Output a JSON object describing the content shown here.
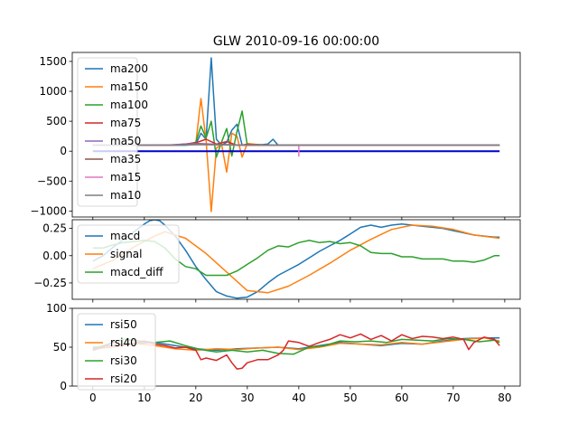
{
  "chart_data": [
    {
      "type": "line",
      "title": "GLW 2010-09-16 00:00:00",
      "xlim": [
        -4,
        83
      ],
      "ylim": [
        -1100,
        1650
      ],
      "yticks": [
        1500,
        1000,
        500,
        0,
        -500,
        -1000
      ],
      "series": [
        {
          "name": "ma200",
          "color": "#1f77b4",
          "x": [
            0,
            10,
            15,
            18,
            20,
            21,
            22,
            23,
            24,
            25,
            26,
            27,
            28,
            29,
            30,
            32,
            34,
            35,
            36,
            40,
            50,
            60,
            70,
            79
          ],
          "y": [
            100,
            100,
            100,
            100,
            110,
            300,
            200,
            1560,
            200,
            100,
            150,
            350,
            450,
            100,
            120,
            100,
            120,
            200,
            100,
            100,
            100,
            100,
            100,
            100
          ]
        },
        {
          "name": "ma150",
          "color": "#ff7f0e",
          "x": [
            0,
            10,
            15,
            18,
            20,
            21,
            22,
            23,
            24,
            25,
            26,
            27,
            28,
            29,
            30,
            32,
            35,
            40,
            50,
            60,
            70,
            79
          ],
          "y": [
            100,
            100,
            100,
            110,
            130,
            880,
            180,
            -1010,
            50,
            120,
            -350,
            300,
            250,
            -100,
            130,
            110,
            100,
            100,
            100,
            100,
            100,
            100
          ]
        },
        {
          "name": "ma100",
          "color": "#2ca02c",
          "x": [
            0,
            10,
            15,
            18,
            20,
            21,
            22,
            23,
            24,
            25,
            26,
            27,
            28,
            29,
            30,
            32,
            35,
            40,
            50,
            60,
            70,
            79
          ],
          "y": [
            100,
            100,
            100,
            110,
            150,
            420,
            220,
            500,
            -100,
            150,
            380,
            -80,
            330,
            670,
            100,
            110,
            100,
            100,
            100,
            100,
            100,
            100
          ]
        },
        {
          "name": "ma75",
          "color": "#d62728",
          "x": [
            0,
            10,
            15,
            18,
            20,
            22,
            24,
            26,
            28,
            30,
            35,
            40,
            50,
            60,
            70,
            79
          ],
          "y": [
            100,
            100,
            100,
            120,
            140,
            200,
            120,
            160,
            100,
            110,
            100,
            100,
            100,
            100,
            100,
            100
          ]
        },
        {
          "name": "ma50",
          "color": "#9467bd",
          "x": [
            0,
            10,
            15,
            20,
            25,
            30,
            35,
            40,
            50,
            60,
            70,
            79
          ],
          "y": [
            100,
            100,
            105,
            130,
            110,
            100,
            100,
            100,
            100,
            100,
            100,
            100
          ]
        },
        {
          "name": "ma35",
          "color": "#8c564b",
          "x": [
            0,
            10,
            15,
            20,
            25,
            30,
            35,
            40,
            50,
            60,
            70,
            79
          ],
          "y": [
            100,
            100,
            100,
            120,
            110,
            100,
            100,
            100,
            100,
            100,
            100,
            100
          ]
        },
        {
          "name": "ma15",
          "color": "#e377c2",
          "x": [
            0,
            10,
            15,
            20,
            25,
            30,
            35,
            40,
            50,
            60,
            70,
            79
          ],
          "y": [
            100,
            100,
            100,
            110,
            105,
            100,
            100,
            100,
            100,
            100,
            100,
            100
          ]
        },
        {
          "name": "ma10",
          "color": "#7f7f7f",
          "x": [
            0,
            10,
            15,
            20,
            25,
            30,
            35,
            40,
            50,
            60,
            70,
            79
          ],
          "y": [
            100,
            100,
            100,
            110,
            105,
            100,
            100,
            100,
            100,
            100,
            100,
            100
          ]
        },
        {
          "color": "#0000cc",
          "x": [
            0,
            79
          ],
          "y": [
            0,
            0
          ]
        }
      ],
      "markers": [
        {
          "x": 40,
          "y": 0,
          "color": "#e377c2"
        }
      ]
    },
    {
      "type": "line",
      "xlim": [
        -4,
        83
      ],
      "ylim": [
        -0.4,
        0.33
      ],
      "yticks": [
        0.25,
        0.0,
        -0.25
      ],
      "ytick_labels": [
        "0.25",
        "0.00",
        "−0.25"
      ],
      "series": [
        {
          "name": "macd",
          "color": "#1f77b4",
          "x": [
            0,
            2,
            4,
            6,
            8,
            10,
            11,
            12,
            13,
            14,
            16,
            18,
            20,
            22,
            24,
            26,
            28,
            30,
            32,
            34,
            36,
            38,
            40,
            42,
            44,
            46,
            48,
            50,
            52,
            54,
            56,
            58,
            60,
            62,
            64,
            66,
            68,
            70,
            72,
            74,
            76,
            78,
            79
          ],
          "y": [
            -0.05,
            0.0,
            0.08,
            0.15,
            0.22,
            0.29,
            0.32,
            0.33,
            0.32,
            0.28,
            0.18,
            0.05,
            -0.1,
            -0.22,
            -0.33,
            -0.37,
            -0.39,
            -0.38,
            -0.33,
            -0.25,
            -0.18,
            -0.13,
            -0.08,
            -0.02,
            0.04,
            0.09,
            0.14,
            0.2,
            0.26,
            0.28,
            0.26,
            0.28,
            0.29,
            0.28,
            0.27,
            0.26,
            0.25,
            0.23,
            0.21,
            0.19,
            0.18,
            0.17,
            0.17
          ]
        },
        {
          "name": "signal",
          "color": "#ff7f0e",
          "x": [
            0,
            4,
            8,
            12,
            14,
            18,
            22,
            26,
            30,
            34,
            38,
            42,
            46,
            50,
            54,
            58,
            62,
            66,
            70,
            74,
            79
          ],
          "y": [
            -0.12,
            -0.04,
            0.08,
            0.18,
            0.22,
            0.16,
            0.02,
            -0.15,
            -0.32,
            -0.34,
            -0.28,
            -0.18,
            -0.07,
            0.05,
            0.15,
            0.24,
            0.28,
            0.27,
            0.24,
            0.19,
            0.16
          ]
        },
        {
          "name": "macd_diff",
          "color": "#2ca02c",
          "x": [
            0,
            2,
            4,
            6,
            8,
            10,
            12,
            14,
            16,
            18,
            20,
            22,
            24,
            26,
            28,
            30,
            32,
            34,
            36,
            38,
            40,
            42,
            44,
            46,
            48,
            50,
            52,
            54,
            56,
            58,
            60,
            62,
            64,
            66,
            68,
            70,
            72,
            74,
            76,
            78,
            79
          ],
          "y": [
            0.07,
            0.07,
            0.1,
            0.12,
            0.13,
            0.14,
            0.13,
            0.07,
            -0.03,
            -0.1,
            -0.12,
            -0.18,
            -0.18,
            -0.18,
            -0.14,
            -0.08,
            -0.02,
            0.05,
            0.09,
            0.08,
            0.12,
            0.14,
            0.12,
            0.13,
            0.11,
            0.12,
            0.09,
            0.03,
            0.02,
            0.02,
            -0.01,
            -0.01,
            -0.03,
            -0.03,
            -0.03,
            -0.05,
            -0.05,
            -0.06,
            -0.04,
            0.0,
            0.0
          ]
        }
      ]
    },
    {
      "type": "line",
      "xlabel": "",
      "xlim": [
        -4,
        83
      ],
      "xticks": [
        0,
        10,
        20,
        30,
        40,
        50,
        60,
        70,
        80
      ],
      "ylim": [
        0,
        100
      ],
      "yticks": [
        100,
        50,
        0
      ],
      "series": [
        {
          "name": "rsi50",
          "color": "#1f77b4",
          "x": [
            0,
            4,
            8,
            12,
            16,
            20,
            24,
            28,
            32,
            36,
            40,
            44,
            48,
            52,
            56,
            60,
            64,
            68,
            72,
            76,
            79
          ],
          "y": [
            50,
            52,
            55,
            56,
            52,
            48,
            46,
            48,
            49,
            50,
            48,
            52,
            56,
            54,
            52,
            55,
            54,
            58,
            61,
            62,
            62
          ]
        },
        {
          "name": "rsi40",
          "color": "#ff7f0e",
          "x": [
            0,
            4,
            8,
            12,
            16,
            20,
            24,
            28,
            32,
            36,
            40,
            44,
            48,
            52,
            56,
            60,
            64,
            68,
            72,
            76,
            79
          ],
          "y": [
            48,
            50,
            55,
            52,
            48,
            46,
            48,
            47,
            49,
            50,
            47,
            50,
            55,
            54,
            53,
            56,
            54,
            57,
            60,
            62,
            58
          ]
        },
        {
          "name": "rsi30",
          "color": "#2ca02c",
          "x": [
            0,
            3,
            6,
            9,
            12,
            15,
            18,
            21,
            24,
            27,
            30,
            33,
            36,
            39,
            42,
            45,
            48,
            51,
            54,
            57,
            60,
            63,
            66,
            69,
            72,
            75,
            78,
            79
          ],
          "y": [
            48,
            54,
            60,
            58,
            56,
            58,
            52,
            47,
            44,
            46,
            44,
            46,
            42,
            41,
            50,
            52,
            58,
            57,
            58,
            56,
            60,
            59,
            58,
            61,
            60,
            57,
            59,
            56
          ]
        },
        {
          "name": "rsi20",
          "color": "#d62728",
          "x": [
            0,
            2,
            4,
            6,
            8,
            10,
            12,
            14,
            16,
            18,
            20,
            21,
            22,
            24,
            26,
            27,
            28,
            29,
            30,
            32,
            34,
            36,
            37,
            38,
            40,
            42,
            44,
            46,
            48,
            50,
            52,
            54,
            56,
            58,
            60,
            62,
            64,
            66,
            68,
            70,
            72,
            73,
            74,
            76,
            78,
            79
          ],
          "y": [
            46,
            50,
            57,
            52,
            55,
            58,
            54,
            52,
            49,
            50,
            46,
            34,
            36,
            33,
            40,
            30,
            22,
            23,
            30,
            34,
            34,
            40,
            46,
            58,
            56,
            51,
            56,
            60,
            66,
            62,
            67,
            60,
            65,
            58,
            66,
            61,
            64,
            63,
            61,
            63,
            60,
            47,
            56,
            63,
            60,
            52
          ]
        }
      ]
    }
  ]
}
